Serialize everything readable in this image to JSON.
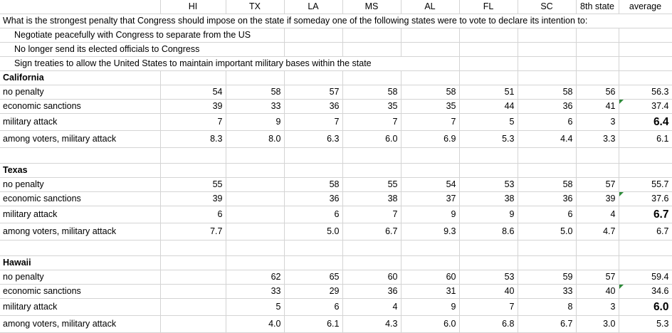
{
  "columns": [
    "HI",
    "TX",
    "LA",
    "MS",
    "AL",
    "FL",
    "SC",
    "8th state",
    "average"
  ],
  "question": "What is the strongest penalty that Congress should impose on the state if someday one of the following states were to vote to declare its intention to:",
  "options": [
    "Negotiate peacefully with Congress to separate from the US",
    "No longer send its elected officials to Congress",
    "Sign treaties to allow the United States to maintain important military bases within the state"
  ],
  "sections": [
    {
      "name": "California",
      "rows": [
        {
          "label": "no penalty",
          "values": [
            "54",
            "58",
            "57",
            "58",
            "58",
            "51",
            "58",
            "56",
            "56.3"
          ]
        },
        {
          "label": "economic sanctions",
          "values": [
            "39",
            "33",
            "36",
            "35",
            "35",
            "44",
            "36",
            "41",
            "37.4"
          ]
        },
        {
          "label": "military attack",
          "values": [
            "7",
            "9",
            "7",
            "7",
            "7",
            "5",
            "6",
            "3",
            "6.4"
          ]
        },
        {
          "label": "among voters, military attack",
          "values": [
            "8.3",
            "8.0",
            "6.3",
            "6.0",
            "6.9",
            "5.3",
            "4.4",
            "3.3",
            "6.1"
          ]
        }
      ]
    },
    {
      "name": "Texas",
      "rows": [
        {
          "label": "no penalty",
          "values": [
            "55",
            "",
            "58",
            "55",
            "54",
            "53",
            "58",
            "57",
            "55.7"
          ]
        },
        {
          "label": "economic sanctions",
          "values": [
            "39",
            "",
            "36",
            "38",
            "37",
            "38",
            "36",
            "39",
            "37.6"
          ]
        },
        {
          "label": "military attack",
          "values": [
            "6",
            "",
            "6",
            "7",
            "9",
            "9",
            "6",
            "4",
            "6.7"
          ]
        },
        {
          "label": "among voters, military attack",
          "values": [
            "7.7",
            "",
            "5.0",
            "6.7",
            "9.3",
            "8.6",
            "5.0",
            "4.7",
            "6.7"
          ]
        }
      ]
    },
    {
      "name": "Hawaii",
      "rows": [
        {
          "label": "no penalty",
          "values": [
            "",
            "62",
            "65",
            "60",
            "60",
            "53",
            "59",
            "57",
            "59.4"
          ]
        },
        {
          "label": "economic sanctions",
          "values": [
            "",
            "33",
            "29",
            "36",
            "31",
            "40",
            "33",
            "40",
            "34.6"
          ]
        },
        {
          "label": "military attack",
          "values": [
            "",
            "5",
            "6",
            "4",
            "9",
            "7",
            "8",
            "3",
            "6.0"
          ]
        },
        {
          "label": "among voters, military attack",
          "values": [
            "",
            "4.0",
            "6.1",
            "4.3",
            "6.0",
            "6.8",
            "6.7",
            "3.0",
            "5.3"
          ]
        }
      ]
    }
  ]
}
